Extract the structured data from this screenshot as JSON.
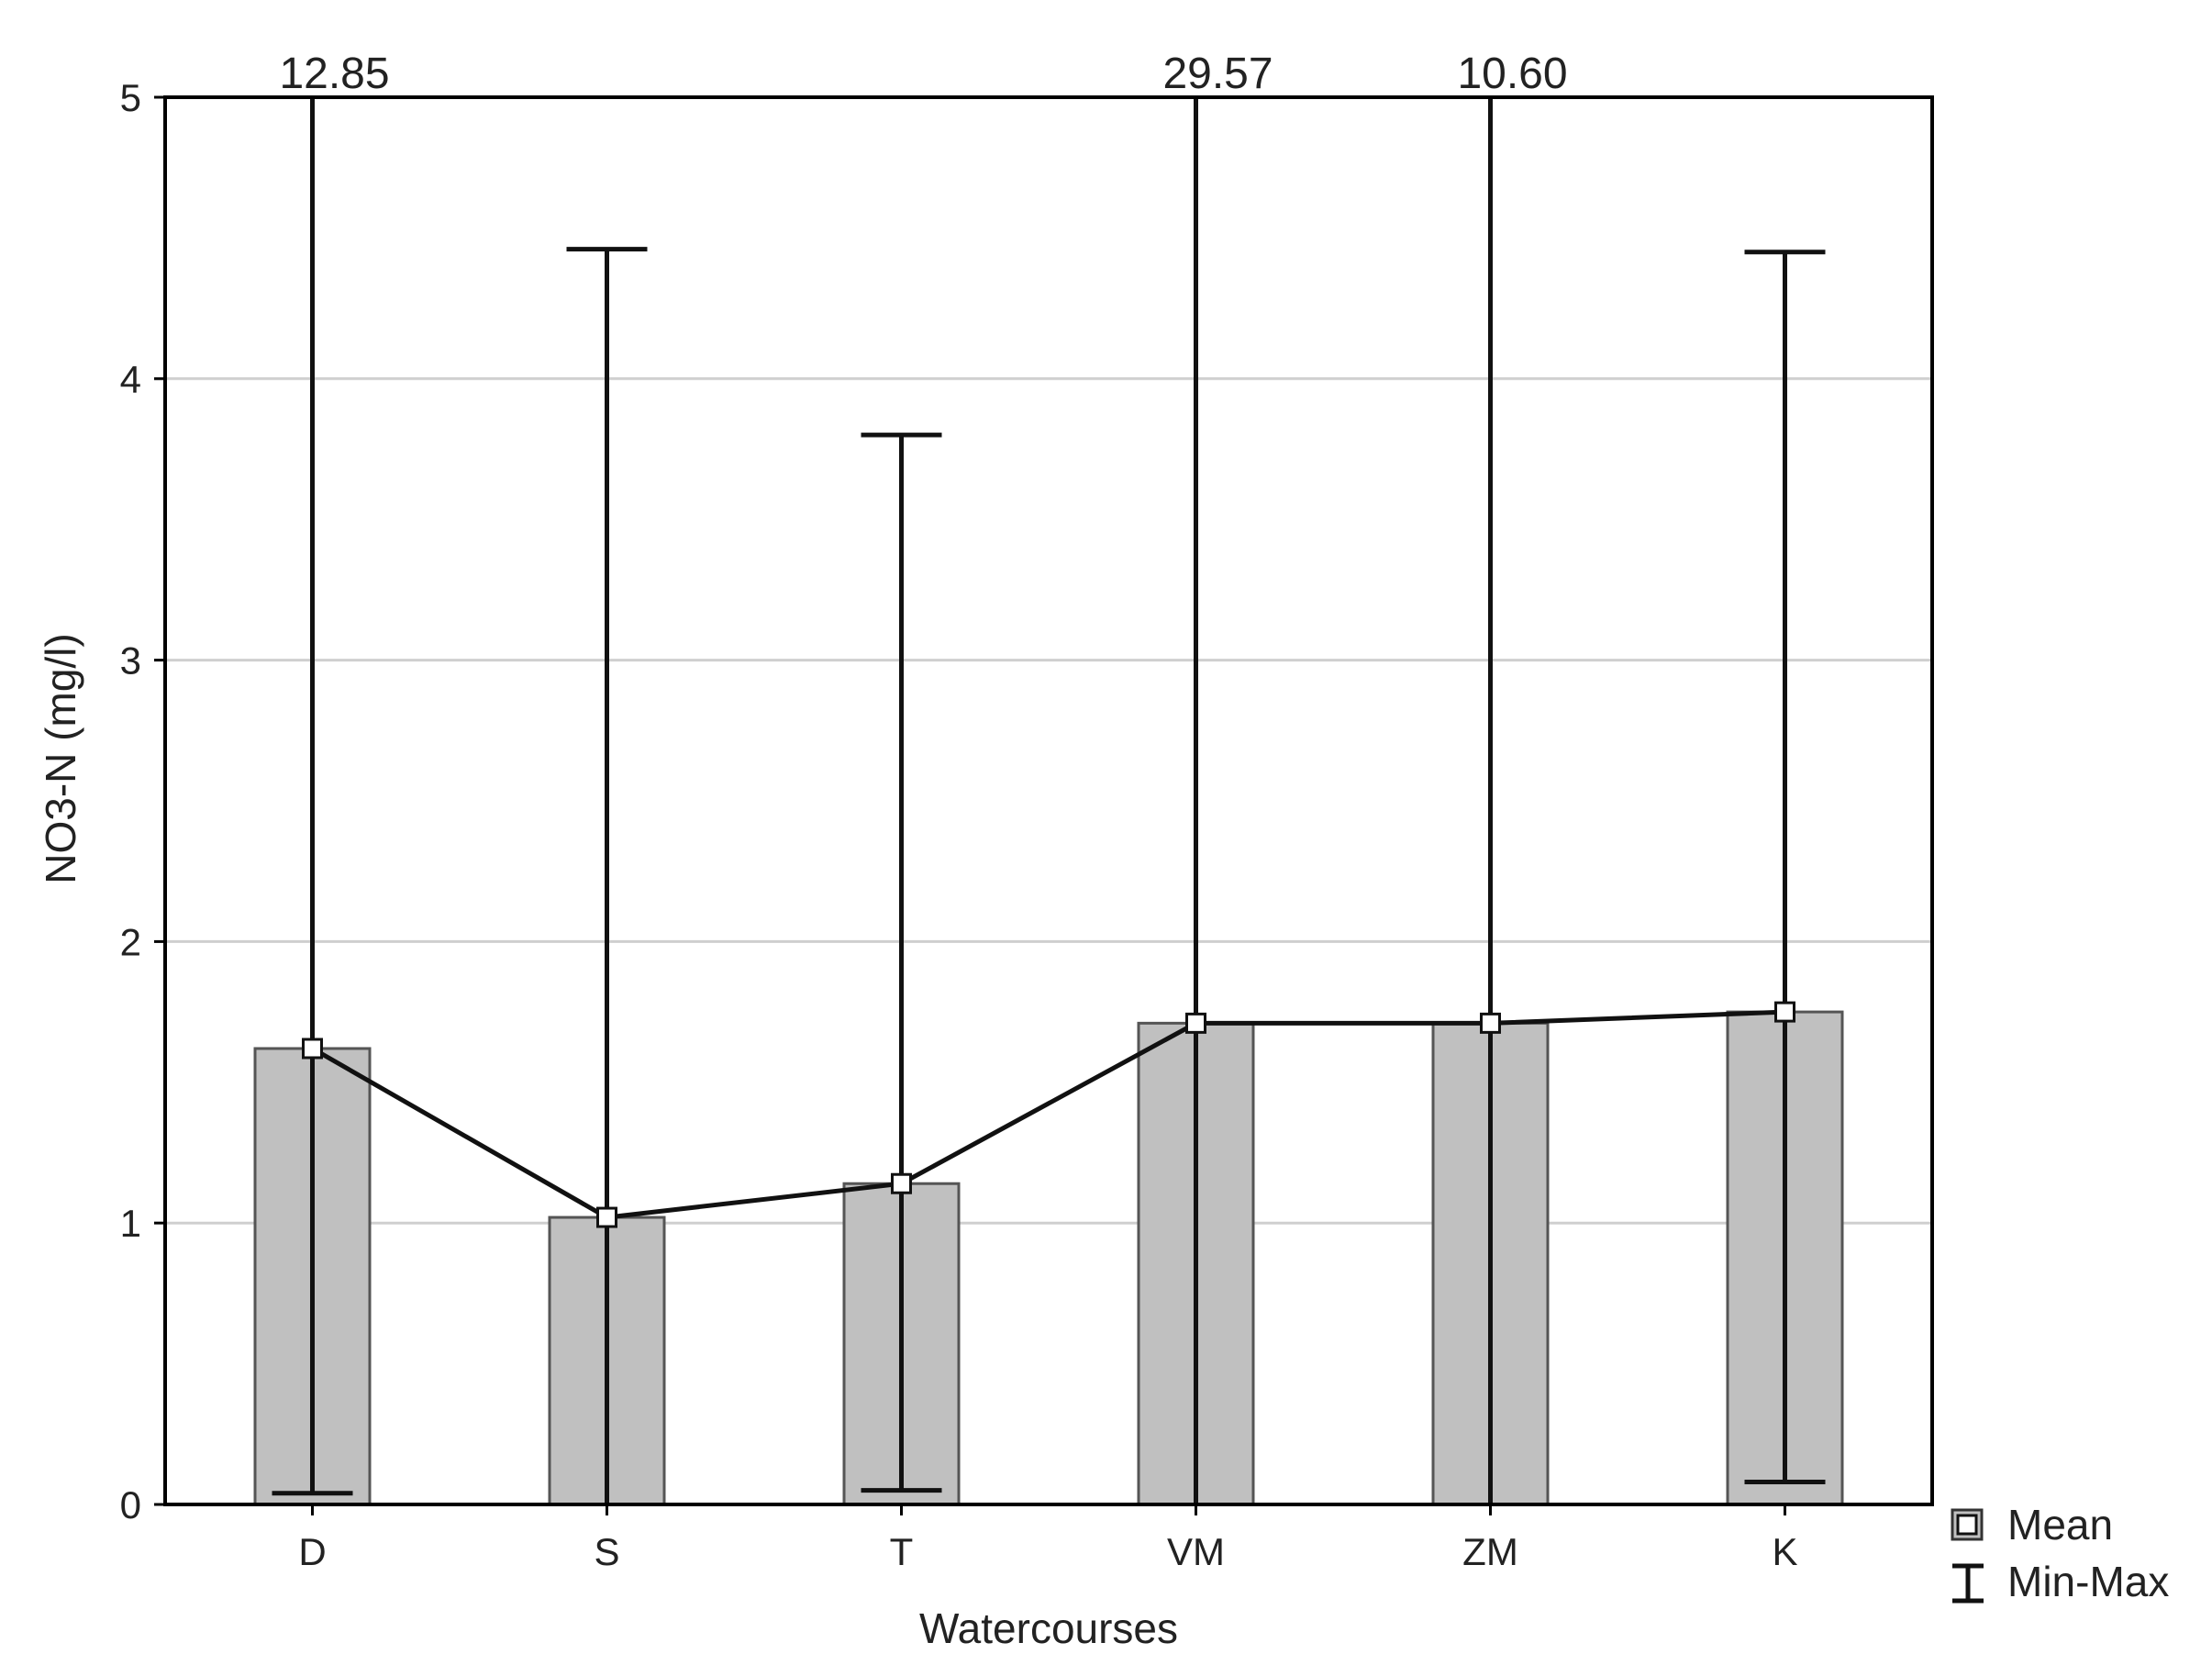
{
  "chart_data": {
    "type": "bar",
    "title": "",
    "xlabel": "Watercourses",
    "ylabel": "NO3-N (mg/l)",
    "ylim": [
      0,
      5
    ],
    "yticks": [
      0,
      1,
      2,
      3,
      4,
      5
    ],
    "grid": true,
    "legend_position": "bottom-right",
    "categories": [
      "D",
      "S",
      "T",
      "VM",
      "ZM",
      "K"
    ],
    "series": [
      {
        "name": "Mean",
        "values": [
          1.62,
          1.02,
          1.14,
          1.71,
          1.71,
          1.75
        ]
      }
    ],
    "error_bars": {
      "name": "Min-Max",
      "min": [
        0.04,
        0.0,
        0.05,
        0.0,
        0.0,
        0.08
      ],
      "max": [
        12.85,
        4.46,
        3.8,
        29.57,
        10.6,
        4.45
      ]
    },
    "overflow_labels": [
      "12.85",
      "",
      "",
      "29.57",
      "10.60",
      ""
    ],
    "colors": {
      "bar_fill": "#c0c0c0",
      "bar_stroke": "#555555",
      "line": "#111111",
      "marker_fill": "#ffffff",
      "grid": "#cfcfcf",
      "axis": "#000000"
    }
  }
}
